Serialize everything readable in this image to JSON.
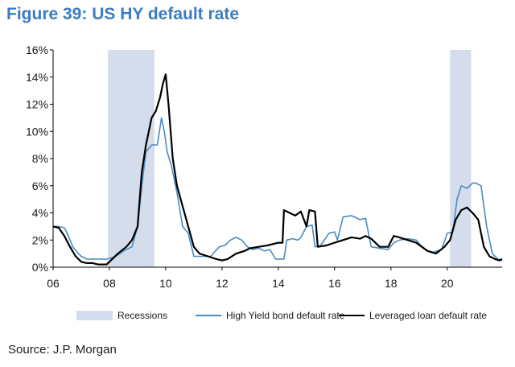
{
  "figure": {
    "title": "Figure 39: US HY default rate",
    "source": "Source: J.P. Morgan"
  },
  "colors": {
    "title": "#3d7cbf",
    "recession": "#d5dceb",
    "hy_line": "#4a8cc2",
    "loan_line": "#000000",
    "axis": "#000000"
  },
  "chart_data": {
    "type": "line",
    "title": "",
    "xlabel": "",
    "ylabel": "",
    "xlim": [
      2006,
      2021.95
    ],
    "ylim": [
      0,
      16
    ],
    "grid": false,
    "legend_position": "bottom",
    "y_ticks": [
      0,
      2,
      4,
      6,
      8,
      10,
      12,
      14,
      16
    ],
    "y_tick_labels": [
      "0%",
      "2%",
      "4%",
      "6%",
      "8%",
      "10%",
      "12%",
      "14%",
      "16%"
    ],
    "x_ticks": [
      2006,
      2008,
      2010,
      2012,
      2014,
      2016,
      2018,
      2020
    ],
    "x_tick_labels": [
      "06",
      "08",
      "10",
      "12",
      "14",
      "16",
      "18",
      "20"
    ],
    "shaded_regions": [
      {
        "name": "Recessions",
        "start": 2007.95,
        "end": 2009.6
      },
      {
        "name": "Recessions",
        "start": 2020.1,
        "end": 2020.85
      }
    ],
    "series": [
      {
        "name": "High Yield bond default rate",
        "color": "#4a8cc2",
        "x": [
          2006.0,
          2006.2,
          2006.4,
          2006.5,
          2006.7,
          2006.9,
          2007.0,
          2007.2,
          2007.4,
          2007.6,
          2007.9,
          2008.1,
          2008.3,
          2008.5,
          2008.8,
          2009.0,
          2009.15,
          2009.3,
          2009.5,
          2009.7,
          2009.85,
          2009.95,
          2010.05,
          2010.2,
          2010.4,
          2010.6,
          2010.8,
          2011.0,
          2011.3,
          2011.6,
          2011.9,
          2012.1,
          2012.3,
          2012.5,
          2012.7,
          2012.9,
          2013.1,
          2013.3,
          2013.5,
          2013.7,
          2013.9,
          2014.2,
          2014.3,
          2014.5,
          2014.7,
          2014.8,
          2015.0,
          2015.2,
          2015.3,
          2015.5,
          2015.8,
          2016.0,
          2016.1,
          2016.3,
          2016.6,
          2016.9,
          2017.1,
          2017.3,
          2017.6,
          2017.9,
          2018.1,
          2018.3,
          2018.6,
          2018.9,
          2019.1,
          2019.3,
          2019.5,
          2019.8,
          2020.0,
          2020.2,
          2020.35,
          2020.5,
          2020.7,
          2020.9,
          2021.0,
          2021.2,
          2021.4,
          2021.6,
          2021.8,
          2021.95
        ],
        "y": [
          3.0,
          3.0,
          2.9,
          2.5,
          1.5,
          1.0,
          0.8,
          0.6,
          0.6,
          0.6,
          0.6,
          0.7,
          0.9,
          1.2,
          1.5,
          3.0,
          6.0,
          8.5,
          9.0,
          9.0,
          11.0,
          10.0,
          8.5,
          7.5,
          5.5,
          3.0,
          2.5,
          0.8,
          0.8,
          0.8,
          1.5,
          1.6,
          2.0,
          2.2,
          2.0,
          1.5,
          1.3,
          1.4,
          1.2,
          1.3,
          0.6,
          0.6,
          2.0,
          2.1,
          2.0,
          2.2,
          3.0,
          3.1,
          1.5,
          1.6,
          2.5,
          2.6,
          2.0,
          3.7,
          3.8,
          3.5,
          3.6,
          1.5,
          1.4,
          1.3,
          1.8,
          2.0,
          2.1,
          2.0,
          1.5,
          1.2,
          1.1,
          1.3,
          2.5,
          2.6,
          5.0,
          6.0,
          5.8,
          6.2,
          6.2,
          6.0,
          3.0,
          1.0,
          0.6,
          0.5
        ]
      },
      {
        "name": "Leveraged loan default rate",
        "color": "#000000",
        "x": [
          2006.0,
          2006.2,
          2006.4,
          2006.6,
          2006.8,
          2007.0,
          2007.2,
          2007.4,
          2007.6,
          2007.9,
          2008.1,
          2008.3,
          2008.6,
          2008.8,
          2009.0,
          2009.15,
          2009.3,
          2009.5,
          2009.65,
          2009.8,
          2009.9,
          2010.0,
          2010.1,
          2010.25,
          2010.4,
          2010.6,
          2010.8,
          2011.0,
          2011.2,
          2011.5,
          2011.8,
          2012.0,
          2012.2,
          2012.5,
          2012.8,
          2013.0,
          2013.3,
          2013.6,
          2013.8,
          2014.0,
          2014.15,
          2014.2,
          2014.4,
          2014.6,
          2014.8,
          2015.0,
          2015.1,
          2015.3,
          2015.4,
          2015.7,
          2016.0,
          2016.3,
          2016.6,
          2016.9,
          2017.1,
          2017.3,
          2017.6,
          2017.9,
          2018.1,
          2018.3,
          2018.6,
          2018.9,
          2019.1,
          2019.3,
          2019.6,
          2019.9,
          2020.1,
          2020.3,
          2020.5,
          2020.7,
          2020.9,
          2021.1,
          2021.3,
          2021.5,
          2021.7,
          2021.85,
          2021.95
        ],
        "y": [
          3.0,
          2.9,
          2.3,
          1.5,
          0.8,
          0.4,
          0.3,
          0.3,
          0.2,
          0.2,
          0.6,
          1.0,
          1.5,
          2.0,
          3.0,
          7.0,
          9.0,
          11.0,
          11.5,
          12.5,
          13.5,
          14.2,
          12.0,
          8.0,
          6.0,
          4.5,
          3.0,
          1.5,
          1.0,
          0.8,
          0.6,
          0.5,
          0.6,
          1.0,
          1.2,
          1.4,
          1.5,
          1.6,
          1.7,
          1.8,
          1.8,
          4.2,
          4.0,
          3.8,
          4.1,
          3.0,
          4.2,
          4.1,
          1.5,
          1.6,
          1.8,
          2.0,
          2.2,
          2.1,
          2.3,
          2.1,
          1.5,
          1.5,
          2.3,
          2.2,
          2.0,
          1.8,
          1.5,
          1.2,
          1.0,
          1.5,
          2.0,
          3.5,
          4.2,
          4.4,
          4.0,
          3.5,
          1.5,
          0.8,
          0.6,
          0.5,
          0.6
        ]
      }
    ]
  }
}
